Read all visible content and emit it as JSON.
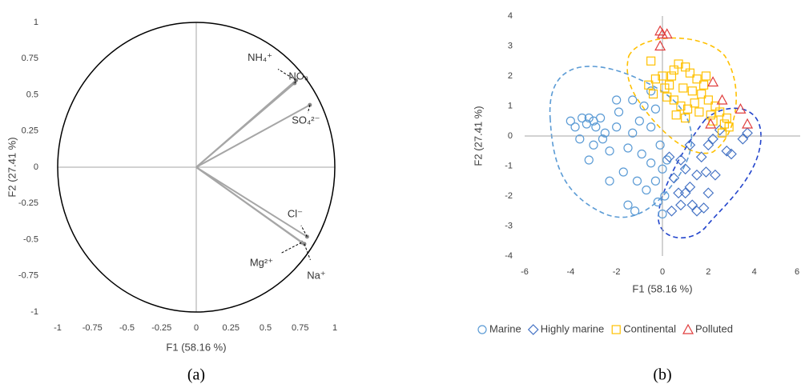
{
  "chart_data": [
    {
      "type": "correlation-circle",
      "caption": "(a)",
      "xlabel": "F1 (58.16 %)",
      "ylabel": "F2 (27.41 %)",
      "xlim": [
        -1,
        1
      ],
      "ylim": [
        -1,
        1
      ],
      "xticks": [
        -1,
        -0.75,
        -0.5,
        -0.25,
        0,
        0.25,
        0.5,
        0.75,
        1
      ],
      "yticks": [
        -1,
        -0.75,
        -0.5,
        -0.25,
        0,
        0.25,
        0.5,
        0.75,
        1
      ],
      "color": "#a6a6a6",
      "vectors": [
        {
          "name": "NH₄⁺",
          "x": 0.72,
          "y": 0.6
        },
        {
          "name": "NO₃",
          "x": 0.71,
          "y": 0.58
        },
        {
          "name": "SO₄²⁻",
          "x": 0.82,
          "y": 0.43
        },
        {
          "name": "Cl⁻",
          "x": 0.8,
          "y": -0.48
        },
        {
          "name": "Mg²⁺",
          "x": 0.76,
          "y": -0.52
        },
        {
          "name": "Na⁺",
          "x": 0.78,
          "y": -0.53
        }
      ]
    },
    {
      "type": "scatter",
      "caption": "(b)",
      "xlabel": "F1 (58.16 %)",
      "ylabel": "F2 (27.41 %)",
      "xlim": [
        -6,
        6
      ],
      "ylim": [
        -4,
        4
      ],
      "xticks": [
        -6,
        -4,
        -2,
        0,
        2,
        4,
        6
      ],
      "yticks": [
        -4,
        -3,
        -2,
        -1,
        0,
        1,
        2,
        3,
        4
      ],
      "series": [
        {
          "name": "Marine",
          "color": "#5b9bd5",
          "marker": "circle",
          "x": [
            -4,
            -3.8,
            -3.5,
            -3.3,
            -3.2,
            -3,
            -2.9,
            -2.7,
            -3.6,
            -3.2,
            -3,
            -2.5,
            -2.3,
            -2,
            -1.9,
            -2,
            -1.5,
            -1.7,
            -1.3,
            -1,
            -0.9,
            -0.8,
            -0.5,
            -0.5,
            -0.3,
            -0.7,
            -0.2,
            -1.2,
            -0.3,
            0,
            0.2,
            0.1,
            0,
            -1.5,
            -2.3,
            -1.1,
            -2.6,
            -1.3,
            -0.5,
            -0.1
          ],
          "y": [
            0.5,
            0.3,
            0.6,
            0.4,
            0.6,
            0.5,
            0.3,
            0.6,
            -0.1,
            -0.8,
            -0.3,
            0.1,
            -0.5,
            0.3,
            0.8,
            1.2,
            -0.4,
            -1.2,
            0.1,
            0.5,
            -0.6,
            1,
            0.3,
            -0.9,
            -1.5,
            -1.8,
            -2.2,
            -2.5,
            0.9,
            -1.1,
            -0.8,
            -2,
            -2.6,
            -2.3,
            -1.5,
            -1.5,
            -0.1,
            1.2,
            1.5,
            -0.3
          ]
        },
        {
          "name": "Highly marine",
          "color": "#4472c4",
          "marker": "diamond",
          "x": [
            0.5,
            0.8,
            1,
            1.2,
            1.5,
            1.7,
            2,
            2,
            1.5,
            1.3,
            1.8,
            0.8,
            0.4,
            1,
            2.2,
            2.8,
            3,
            2.5,
            3.5,
            3.7,
            1.2,
            0.7,
            1.9,
            0.3,
            2.3
          ],
          "y": [
            -1.4,
            -0.8,
            -1.1,
            -1.7,
            -1.3,
            -0.7,
            -0.3,
            -1.9,
            -2.5,
            -2.3,
            -2.4,
            -2.3,
            -2.5,
            -1.9,
            -0.1,
            -0.5,
            -0.6,
            0.2,
            -0.1,
            0.1,
            -0.3,
            -1.9,
            -1.2,
            -0.7,
            -1.3
          ]
        },
        {
          "name": "Continental",
          "color": "#ffc000",
          "marker": "square",
          "x": [
            -0.5,
            -0.3,
            0,
            0.3,
            0.5,
            0.7,
            1,
            1.2,
            1.5,
            1.8,
            0.2,
            0.5,
            0.8,
            1.1,
            1.4,
            1.7,
            2,
            2.3,
            2.5,
            2.7,
            2.9,
            2.6,
            2.2,
            -0.6,
            -0.4,
            0.1,
            0.9,
            1.3,
            1.6,
            2.1,
            0.6,
            1,
            2.8,
            1.9,
            0.4
          ],
          "y": [
            2.5,
            1.9,
            2,
            1.7,
            2.2,
            2.4,
            2.3,
            2.1,
            1.9,
            1.7,
            1.3,
            1.2,
            1,
            0.9,
            1.1,
            1.4,
            1.2,
            1,
            0.8,
            0.4,
            0.3,
            0.1,
            0.5,
            1.7,
            1.4,
            1.6,
            1.6,
            1.5,
            0.8,
            0.7,
            0.7,
            0.6,
            0.6,
            2,
            2
          ]
        },
        {
          "name": "Polluted",
          "color": "#e03c3c",
          "marker": "triangle",
          "x": [
            -0.1,
            0,
            0.2,
            -0.1,
            2.2,
            2.6,
            3.4,
            3.7,
            2.1
          ],
          "y": [
            3.5,
            3.4,
            3.4,
            3,
            1.8,
            1.2,
            0.9,
            0.4,
            0.4
          ]
        }
      ]
    }
  ]
}
